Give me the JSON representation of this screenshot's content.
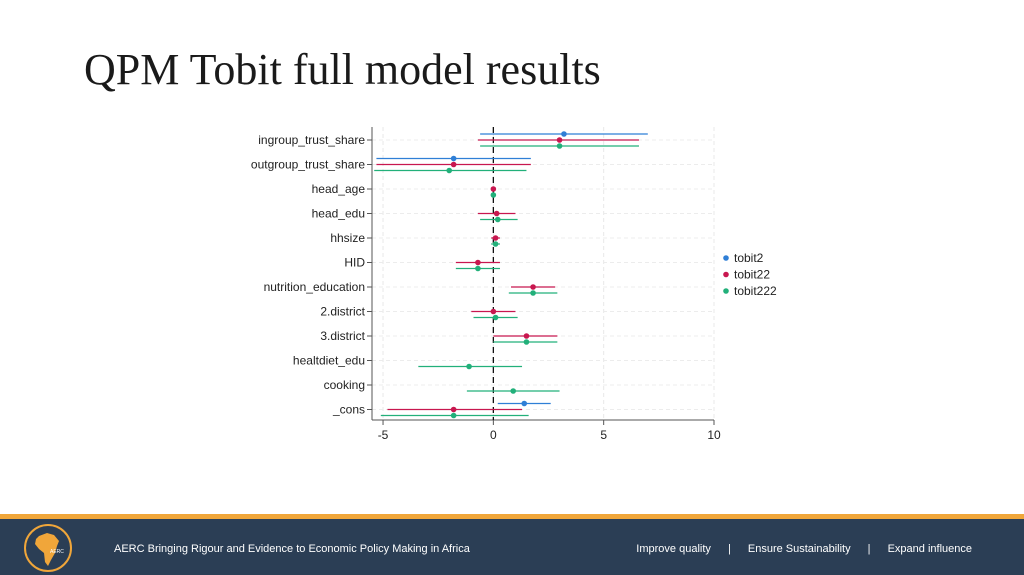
{
  "slide": {
    "title": "QPM Tobit full model results"
  },
  "footer": {
    "tagline": "AERC Bringing Rigour and Evidence to Economic Policy Making in Africa",
    "links": [
      "Improve quality",
      "Ensure Sustainability",
      "Expand influence"
    ],
    "separator": "|",
    "logo_text": "AERC",
    "colors": {
      "band": "#2b3e55",
      "stripe": "#f0a63a",
      "logo": "#f0a63a"
    }
  },
  "chart_data": {
    "type": "coefficient-plot",
    "title": "",
    "xlabel": "",
    "ylabel": "",
    "xlim": [
      -5.5,
      10
    ],
    "xticks": [
      -5,
      0,
      5,
      10
    ],
    "reference_line_x": 0,
    "grid": true,
    "legend_position": "right",
    "categories": [
      "ingroup_trust_share",
      "outgroup_trust_share",
      "head_age",
      "head_edu",
      "hhsize",
      "HID",
      "nutrition_education",
      "2.district",
      "3.district",
      "healtdiet_edu",
      "cooking",
      "_cons"
    ],
    "series": [
      {
        "name": "tobit2",
        "color": "#2f7fd6",
        "points": [
          {
            "category": "ingroup_trust_share",
            "estimate": 3.2,
            "lower": -0.6,
            "upper": 7.0
          },
          {
            "category": "outgroup_trust_share",
            "estimate": -1.8,
            "lower": -5.3,
            "upper": 1.7
          },
          {
            "category": "_cons",
            "estimate": 1.4,
            "lower": 0.2,
            "upper": 2.6
          }
        ]
      },
      {
        "name": "tobit22",
        "color": "#c8174f",
        "points": [
          {
            "category": "ingroup_trust_share",
            "estimate": 3.0,
            "lower": -0.7,
            "upper": 6.6
          },
          {
            "category": "outgroup_trust_share",
            "estimate": -1.8,
            "lower": -5.3,
            "upper": 1.7
          },
          {
            "category": "head_age",
            "estimate": 0.0,
            "lower": -0.05,
            "upper": 0.05
          },
          {
            "category": "head_edu",
            "estimate": 0.15,
            "lower": -0.7,
            "upper": 1.0
          },
          {
            "category": "hhsize",
            "estimate": 0.1,
            "lower": -0.1,
            "upper": 0.3
          },
          {
            "category": "HID",
            "estimate": -0.7,
            "lower": -1.7,
            "upper": 0.3
          },
          {
            "category": "nutrition_education",
            "estimate": 1.8,
            "lower": 0.8,
            "upper": 2.8
          },
          {
            "category": "2.district",
            "estimate": 0.0,
            "lower": -1.0,
            "upper": 1.0
          },
          {
            "category": "3.district",
            "estimate": 1.5,
            "lower": 0.0,
            "upper": 2.9
          },
          {
            "category": "_cons",
            "estimate": -1.8,
            "lower": -4.8,
            "upper": 1.3
          }
        ]
      },
      {
        "name": "tobit222",
        "color": "#22b07a",
        "points": [
          {
            "category": "ingroup_trust_share",
            "estimate": 3.0,
            "lower": -0.6,
            "upper": 6.6
          },
          {
            "category": "outgroup_trust_share",
            "estimate": -2.0,
            "lower": -5.4,
            "upper": 1.5
          },
          {
            "category": "head_age",
            "estimate": 0.0,
            "lower": -0.05,
            "upper": 0.05
          },
          {
            "category": "head_edu",
            "estimate": 0.2,
            "lower": -0.6,
            "upper": 1.1
          },
          {
            "category": "hhsize",
            "estimate": 0.1,
            "lower": -0.1,
            "upper": 0.3
          },
          {
            "category": "HID",
            "estimate": -0.7,
            "lower": -1.7,
            "upper": 0.3
          },
          {
            "category": "nutrition_education",
            "estimate": 1.8,
            "lower": 0.7,
            "upper": 2.9
          },
          {
            "category": "2.district",
            "estimate": 0.1,
            "lower": -0.9,
            "upper": 1.1
          },
          {
            "category": "3.district",
            "estimate": 1.5,
            "lower": 0.0,
            "upper": 2.9
          },
          {
            "category": "healtdiet_edu",
            "estimate": -1.1,
            "lower": -3.4,
            "upper": 1.3
          },
          {
            "category": "cooking",
            "estimate": 0.9,
            "lower": -1.2,
            "upper": 3.0
          },
          {
            "category": "_cons",
            "estimate": -1.8,
            "lower": -5.1,
            "upper": 1.6
          }
        ]
      }
    ]
  }
}
